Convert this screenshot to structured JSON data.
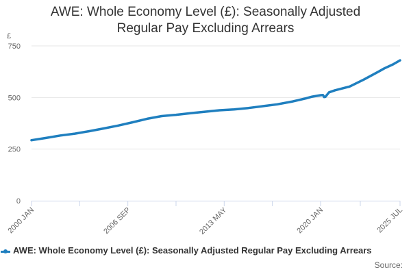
{
  "colors": {
    "series": "#1f7fbf",
    "grid": "#e6e6e6",
    "axis": "#ccd6eb",
    "text": "#666666",
    "title": "#333333"
  },
  "legend": {
    "position": "bottom-left"
  },
  "source_label": "Source:",
  "chart_data": {
    "type": "line",
    "title_lines": [
      "AWE: Whole Economy Level (£): Seasonally Adjusted",
      "Regular Pay Excluding Arrears"
    ],
    "ylabel": "£",
    "xlabel": "",
    "ylim": [
      0,
      750
    ],
    "yticks": [
      0,
      250,
      500,
      750
    ],
    "xticks": [
      {
        "label": "2000 JAN",
        "x": "2000-01"
      },
      {
        "label": "2006 SEP",
        "x": "2006-09"
      },
      {
        "label": "2013 MAY",
        "x": "2013-05"
      },
      {
        "label": "2020 JAN",
        "x": "2020-01"
      },
      {
        "label": "2025 JUL",
        "x": "2025-07"
      }
    ],
    "grid": true,
    "series": [
      {
        "name": "AWE: Whole Economy Level (£): Seasonally Adjusted Regular Pay Excluding Arrears",
        "points": [
          [
            "2000-01",
            293
          ],
          [
            "2001-01",
            304
          ],
          [
            "2002-01",
            316
          ],
          [
            "2003-01",
            325
          ],
          [
            "2004-01",
            337
          ],
          [
            "2005-01",
            350
          ],
          [
            "2006-01",
            364
          ],
          [
            "2007-01",
            380
          ],
          [
            "2008-01",
            397
          ],
          [
            "2009-01",
            410
          ],
          [
            "2010-01",
            416
          ],
          [
            "2011-01",
            424
          ],
          [
            "2012-01",
            431
          ],
          [
            "2013-01",
            438
          ],
          [
            "2014-01",
            442
          ],
          [
            "2015-01",
            449
          ],
          [
            "2016-01",
            458
          ],
          [
            "2017-01",
            467
          ],
          [
            "2018-01",
            480
          ],
          [
            "2019-01",
            496
          ],
          [
            "2019-06",
            504
          ],
          [
            "2020-01",
            511
          ],
          [
            "2020-03",
            512
          ],
          [
            "2020-04",
            502
          ],
          [
            "2020-05",
            503
          ],
          [
            "2020-08",
            525
          ],
          [
            "2021-01",
            535
          ],
          [
            "2022-01",
            553
          ],
          [
            "2023-01",
            587
          ],
          [
            "2024-01",
            625
          ],
          [
            "2024-06",
            641
          ],
          [
            "2025-01",
            660
          ],
          [
            "2025-07",
            680
          ]
        ]
      }
    ]
  }
}
